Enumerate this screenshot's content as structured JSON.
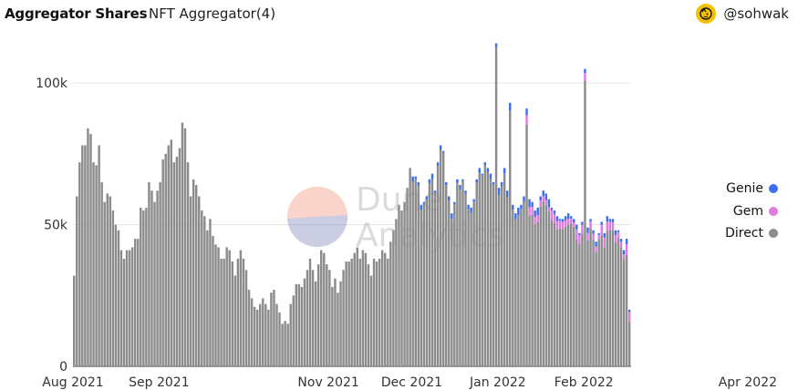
{
  "header": {
    "title": "Aggregator Shares",
    "subtitle": "NFT Aggregator(4)",
    "author": "@sohwak"
  },
  "watermark": {
    "line1": "Dune",
    "line2": "Analytics"
  },
  "legend": [
    {
      "name": "Genie",
      "color": "#3b6ff0"
    },
    {
      "name": "Gem",
      "color": "#e07be0"
    },
    {
      "name": "Direct",
      "color": "#8c8c8c"
    }
  ],
  "chart_data": {
    "type": "bar",
    "stacked": true,
    "x_start": "2021-08-01",
    "x_tick_labels": [
      "Aug 2021",
      "Sep 2021",
      "Nov 2021",
      "Dec 2021",
      "Jan 2022",
      "Feb 2022",
      "Apr 2022"
    ],
    "y_tick_labels": [
      "0",
      "50k",
      "100k"
    ],
    "ylim": [
      0,
      110000
    ],
    "grid": true,
    "legend_position": "right",
    "series": [
      {
        "name": "Direct",
        "color": "#8c8c8c",
        "values": [
          32000,
          60000,
          72000,
          78000,
          78000,
          84000,
          82000,
          72000,
          71000,
          78000,
          65000,
          58000,
          61000,
          60000,
          55000,
          50000,
          48000,
          41000,
          38000,
          41000,
          41000,
          42000,
          45000,
          45000,
          56000,
          55000,
          56000,
          65000,
          62000,
          58000,
          62000,
          65000,
          73000,
          75000,
          78000,
          80000,
          72000,
          74000,
          77000,
          86000,
          84000,
          72000,
          60000,
          66000,
          64000,
          60000,
          55000,
          53000,
          48000,
          52000,
          46000,
          43000,
          42000,
          38000,
          38000,
          42000,
          41000,
          37000,
          32000,
          38000,
          41000,
          38000,
          34000,
          27000,
          24000,
          21000,
          20000,
          22000,
          24000,
          22000,
          20000,
          26000,
          27000,
          22000,
          19000,
          15000,
          16000,
          15000,
          22000,
          25000,
          29000,
          29000,
          28000,
          31000,
          34000,
          38000,
          34000,
          30000,
          36000,
          41000,
          40000,
          36000,
          34000,
          28000,
          31000,
          26000,
          30000,
          34000,
          37000,
          37000,
          38000,
          40000,
          42000,
          38000,
          41000,
          40000,
          36000,
          32000,
          38000,
          37000,
          38000,
          41000,
          40000,
          38000,
          44000,
          48000,
          52000,
          57000,
          55000,
          58000,
          63000,
          70000,
          67000,
          67000,
          65000,
          57000,
          58000,
          60000,
          66000,
          68000,
          62000,
          72000,
          78000,
          76000,
          65000,
          60000,
          54000,
          58000,
          66000,
          64000,
          66000,
          62000,
          57000,
          56000,
          59000,
          66000,
          70000,
          68000,
          72000,
          70000,
          68000,
          65000,
          64000,
          63000,
          65000,
          70000,
          62000,
          58000,
          57000,
          54000,
          56000,
          57000,
          60000,
          59000,
          59000,
          58000,
          55000,
          56000,
          60000,
          62000,
          61000,
          59000,
          56000,
          55000,
          53000,
          52000,
          52000,
          53000,
          54000,
          53000,
          52000,
          50000,
          47000,
          51000,
          53000,
          49000,
          52000,
          48000,
          44000,
          47000,
          51000,
          47000,
          53000,
          52000,
          52000,
          48000,
          48000,
          45000,
          41000,
          45000,
          20000
        ],
        "spikes": {
          "Dec 31 2021": 114000,
          "Jan 5 2022": 93000,
          "Jan 11 2022": 91000,
          "Feb 1 2022": 105000
        }
      },
      {
        "name": "Gem",
        "color": "#e07be0",
        "note": "small stacked share, rising in 2022"
      },
      {
        "name": "Genie",
        "color": "#3b6ff0",
        "note": "small stacked share from Dec 2021"
      }
    ]
  }
}
